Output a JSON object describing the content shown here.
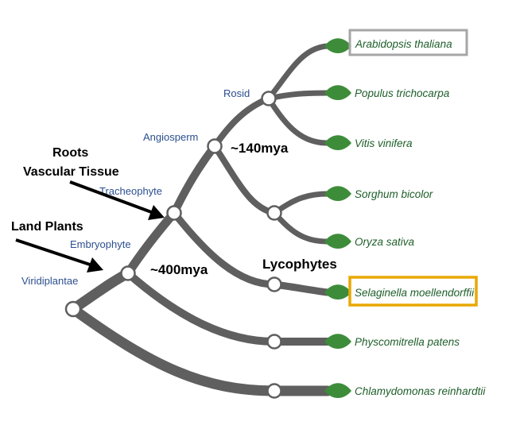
{
  "clades": {
    "viridiplantae": "Viridiplantae",
    "embryophyte": "Embryophyte",
    "tracheophyte": "Tracheophyte",
    "angiosperm": "Angiosperm",
    "rosid": "Rosid"
  },
  "annotations": {
    "roots": "Roots",
    "vascular_tissue": "Vascular Tissue",
    "land_plants": "Land Plants",
    "age_140": "~140mya",
    "age_400": "~400mya",
    "lycophytes": "Lycophytes"
  },
  "species": [
    "Arabidopsis thaliana",
    "Populus trichocarpa",
    "Vitis vinifera",
    "Sorghum bicolor",
    "Oryza sativa",
    "Selaginella moellendorffii",
    "Physcomitrella patens",
    "Chlamydomonas reinhardtii"
  ],
  "highlights": {
    "grey_box": "Arabidopsis thaliana",
    "gold_box": "Selaginella moellendorffii"
  },
  "colors": {
    "branch": "#5f5f5f",
    "leaf": "#3d8c3a",
    "species_text": "#1e5e2a",
    "clade_text": "#2c4f8f",
    "grey_box": "#a6a6a6",
    "gold_box": "#e8a800"
  }
}
